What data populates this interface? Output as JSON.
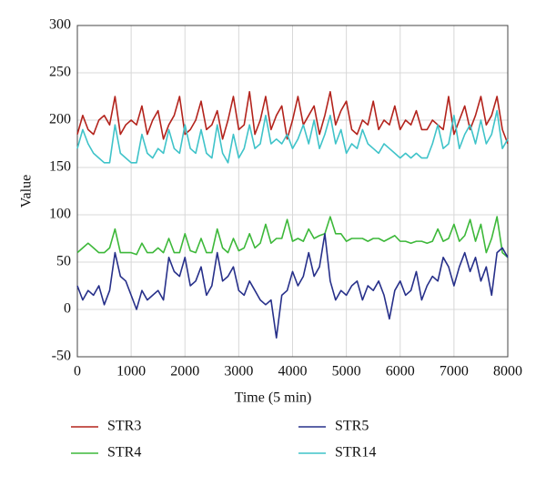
{
  "chart_data": {
    "type": "line",
    "xlabel": "Time (5 min)",
    "ylabel": "Value",
    "x": [
      0,
      100,
      200,
      300,
      400,
      500,
      600,
      700,
      800,
      900,
      1000,
      1100,
      1200,
      1300,
      1400,
      1500,
      1600,
      1700,
      1800,
      1900,
      2000,
      2100,
      2200,
      2300,
      2400,
      2500,
      2600,
      2700,
      2800,
      2900,
      3000,
      3100,
      3200,
      3300,
      3400,
      3500,
      3600,
      3700,
      3800,
      3900,
      4000,
      4100,
      4200,
      4300,
      4400,
      4500,
      4600,
      4700,
      4800,
      4900,
      5000,
      5100,
      5200,
      5300,
      5400,
      5500,
      5600,
      5700,
      5800,
      5900,
      6000,
      6100,
      6200,
      6300,
      6400,
      6500,
      6600,
      6700,
      6800,
      6900,
      7000,
      7100,
      7200,
      7300,
      7400,
      7500,
      7600,
      7700,
      7800,
      7900,
      8000
    ],
    "series": [
      {
        "name": "STR3",
        "color": "#b3231c",
        "values": [
          185,
          205,
          190,
          185,
          200,
          205,
          195,
          225,
          185,
          195,
          200,
          195,
          215,
          185,
          200,
          210,
          180,
          195,
          205,
          225,
          185,
          190,
          200,
          220,
          190,
          195,
          210,
          180,
          200,
          225,
          190,
          195,
          230,
          185,
          200,
          225,
          190,
          205,
          215,
          180,
          200,
          225,
          195,
          205,
          215,
          185,
          205,
          230,
          195,
          210,
          220,
          190,
          185,
          200,
          195,
          220,
          190,
          200,
          195,
          215,
          190,
          200,
          195,
          210,
          190,
          190,
          200,
          195,
          190,
          225,
          185,
          200,
          215,
          190,
          205,
          225,
          195,
          205,
          225,
          190,
          175
        ]
      },
      {
        "name": "STR4",
        "color": "#3db83a",
        "values": [
          60,
          65,
          70,
          65,
          60,
          60,
          65,
          85,
          60,
          60,
          60,
          58,
          70,
          60,
          60,
          65,
          60,
          75,
          60,
          60,
          80,
          62,
          60,
          75,
          60,
          60,
          85,
          65,
          60,
          75,
          62,
          65,
          80,
          65,
          70,
          90,
          70,
          75,
          75,
          95,
          72,
          75,
          72,
          85,
          75,
          78,
          80,
          98,
          80,
          80,
          72,
          75,
          75,
          75,
          72,
          75,
          75,
          72,
          75,
          78,
          72,
          72,
          70,
          72,
          72,
          70,
          72,
          85,
          72,
          75,
          90,
          72,
          78,
          95,
          72,
          90,
          60,
          75,
          98,
          60,
          55
        ]
      },
      {
        "name": "STR5",
        "color": "#27308a",
        "values": [
          25,
          10,
          20,
          15,
          25,
          5,
          20,
          60,
          35,
          30,
          15,
          0,
          20,
          10,
          15,
          20,
          10,
          55,
          40,
          35,
          55,
          25,
          30,
          45,
          15,
          25,
          60,
          30,
          35,
          45,
          20,
          15,
          30,
          20,
          10,
          5,
          10,
          -30,
          15,
          20,
          40,
          25,
          35,
          60,
          35,
          45,
          80,
          30,
          10,
          20,
          15,
          25,
          30,
          10,
          25,
          20,
          30,
          15,
          -10,
          20,
          30,
          15,
          20,
          40,
          10,
          25,
          35,
          30,
          55,
          45,
          25,
          45,
          60,
          40,
          55,
          30,
          45,
          15,
          60,
          65,
          55
        ]
      },
      {
        "name": "STR14",
        "color": "#3fc3c9",
        "values": [
          170,
          190,
          175,
          165,
          160,
          155,
          155,
          195,
          165,
          160,
          155,
          155,
          185,
          165,
          160,
          170,
          165,
          190,
          170,
          165,
          195,
          170,
          165,
          190,
          165,
          160,
          195,
          165,
          155,
          185,
          160,
          170,
          195,
          170,
          175,
          205,
          175,
          180,
          175,
          185,
          170,
          180,
          195,
          175,
          200,
          170,
          185,
          205,
          175,
          190,
          165,
          175,
          170,
          190,
          175,
          170,
          165,
          175,
          170,
          165,
          160,
          165,
          160,
          165,
          160,
          160,
          175,
          195,
          170,
          175,
          205,
          170,
          185,
          195,
          175,
          200,
          175,
          185,
          210,
          170,
          180
        ]
      }
    ],
    "xlim": [
      0,
      8000
    ],
    "xticks": [
      0,
      1000,
      2000,
      3000,
      4000,
      5000,
      6000,
      7000,
      8000
    ],
    "ylim": [
      -50,
      300
    ],
    "yticks": [
      -50,
      0,
      50,
      100,
      150,
      200,
      250,
      300
    ],
    "grid": true
  }
}
